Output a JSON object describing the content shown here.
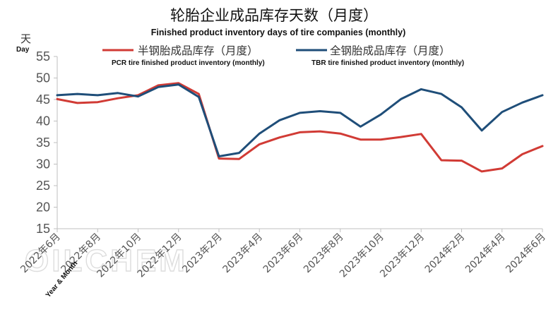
{
  "chart_data": {
    "type": "line",
    "title": "轮胎企业成品库存天数（月度）",
    "subtitle": "Finished product inventory days of tire companies (monthly)",
    "ylabel": "天",
    "ylabel_en": "Day",
    "xlabel_en": "Year & Month",
    "ylim": [
      15,
      55
    ],
    "ytick_step": 5,
    "grid": false,
    "legend_position": "top",
    "watermark": "OILCHEM",
    "x": [
      "2022年6月",
      "2022年7月",
      "2022年8月",
      "2022年9月",
      "2022年10月",
      "2022年11月",
      "2022年12月",
      "2023年1月",
      "2023年2月",
      "2023年3月",
      "2023年4月",
      "2023年5月",
      "2023年6月",
      "2023年7月",
      "2023年8月",
      "2023年9月",
      "2023年10月",
      "2023年11月",
      "2023年12月",
      "2024年1月",
      "2024年2月",
      "2024年3月",
      "2024年4月",
      "2024年5月",
      "2024年6月"
    ],
    "xticks": [
      "2022年6月",
      "2022年8月",
      "2022年10月",
      "2022年12月",
      "2023年2月",
      "2023年4月",
      "2023年6月",
      "2023年8月",
      "2023年10月",
      "2023年12月",
      "2024年2月",
      "2024年4月",
      "2024年6月"
    ],
    "series": [
      {
        "name": "半钢胎成品库存（月度）",
        "name_en": "PCR tire finished product inventory (monthly)",
        "color": "#d13b35",
        "values": [
          45.1,
          44.2,
          44.4,
          45.3,
          46.0,
          48.3,
          48.8,
          46.3,
          31.3,
          31.2,
          34.6,
          36.2,
          37.4,
          37.6,
          37.1,
          35.7,
          35.7,
          36.3,
          37.0,
          30.9,
          30.8,
          28.3,
          29.0,
          32.3,
          34.2
        ]
      },
      {
        "name": "全钢胎成品库存（月度）",
        "name_en": "TBR tire finished product inventory (monthly)",
        "color": "#1f4e79",
        "values": [
          46.0,
          46.3,
          46.0,
          46.5,
          45.7,
          47.9,
          48.5,
          45.6,
          31.8,
          32.6,
          37.1,
          40.2,
          41.9,
          42.3,
          41.9,
          38.7,
          41.5,
          45.1,
          47.4,
          46.3,
          43.2,
          37.8,
          42.1,
          44.3,
          46.0
        ]
      }
    ]
  }
}
